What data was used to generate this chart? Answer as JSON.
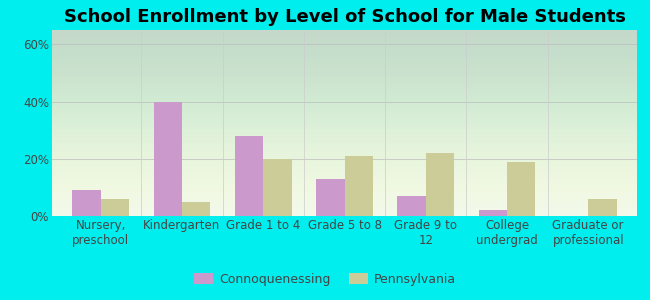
{
  "title": "School Enrollment by Level of School for Male Students",
  "categories": [
    "Nursery,\npreschool",
    "Kindergarten",
    "Grade 1 to 4",
    "Grade 5 to 8",
    "Grade 9 to\n12",
    "College\nundergrad",
    "Graduate or\nprofessional"
  ],
  "connoquenessing": [
    9,
    40,
    28,
    13,
    7,
    2,
    0
  ],
  "pennsylvania": [
    6,
    5,
    20,
    21,
    22,
    19,
    6
  ],
  "bar_color_conno": "#cc99cc",
  "bar_color_penn": "#cccc99",
  "background_outer": "#00eeee",
  "ylim": [
    0,
    65
  ],
  "yticks": [
    0,
    20,
    40,
    60
  ],
  "ytick_labels": [
    "0%",
    "20%",
    "40%",
    "60%"
  ],
  "legend_label_conno": "Connoquenessing",
  "legend_label_penn": "Pennsylvania",
  "title_fontsize": 13,
  "tick_fontsize": 8.5,
  "legend_fontsize": 9,
  "bar_width": 0.35
}
